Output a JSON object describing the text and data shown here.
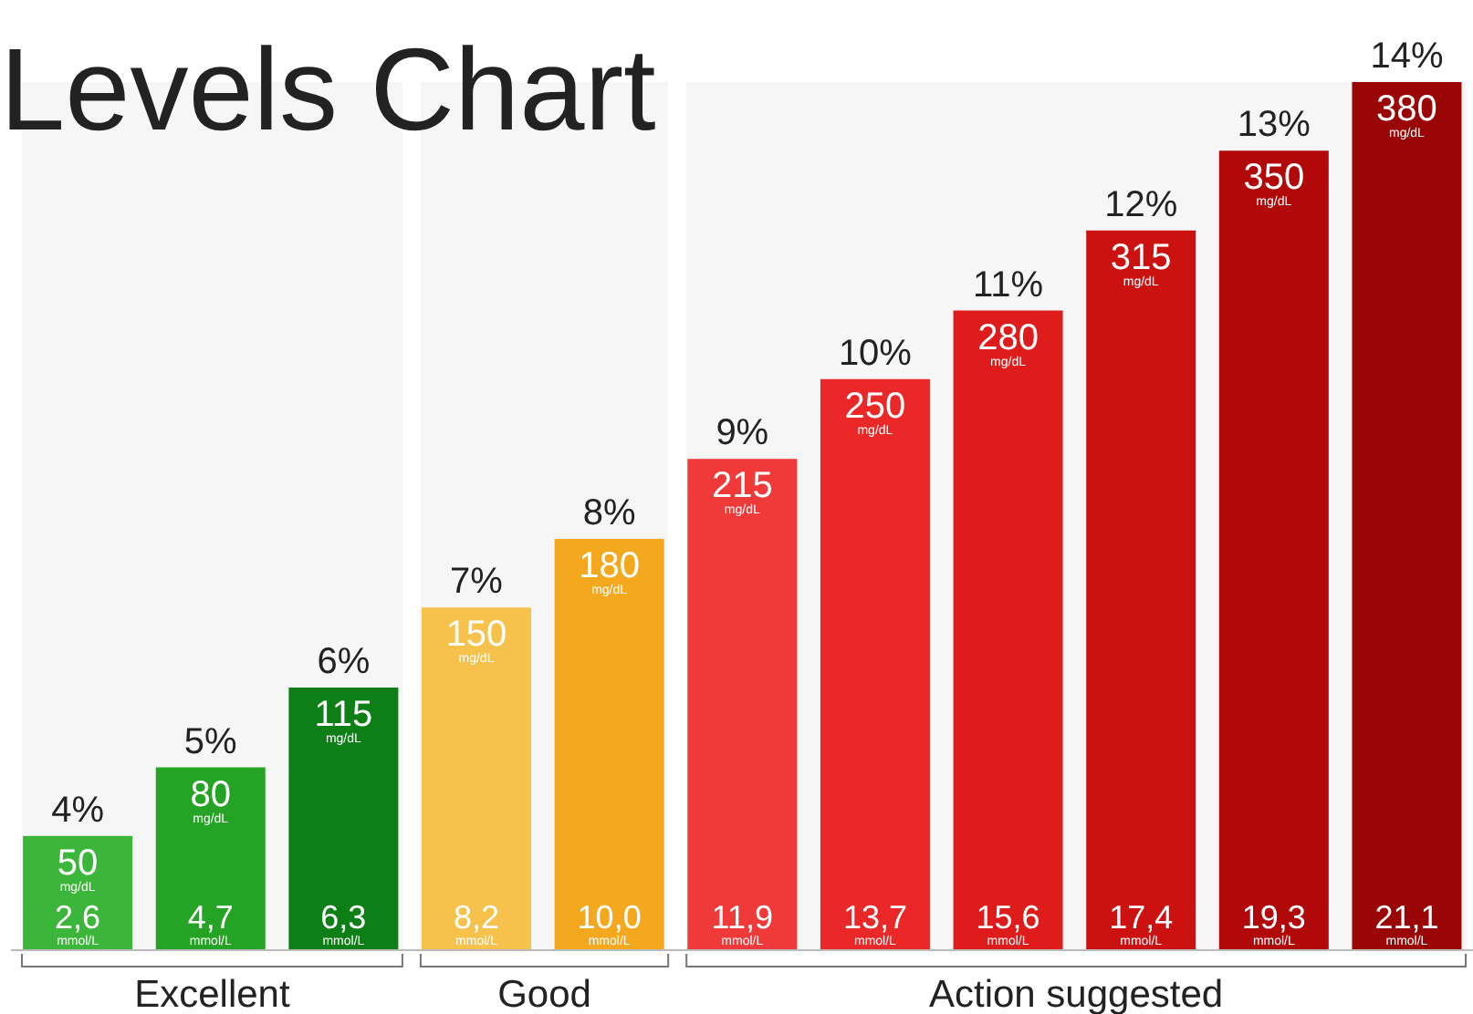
{
  "chart_data": {
    "type": "bar",
    "title": "Levels Chart",
    "categories": [
      "4%",
      "5%",
      "6%",
      "7%",
      "8%",
      "9%",
      "10%",
      "11%",
      "12%",
      "13%",
      "14%"
    ],
    "values": [
      50,
      80,
      115,
      150,
      180,
      215,
      250,
      280,
      315,
      350,
      380
    ],
    "colors": [
      "#3cb63a",
      "#24a324",
      "#0e7f16",
      "#f7c24c",
      "#f4a81e",
      "#f03a3a",
      "#eb2828",
      "#df1c1c",
      "#cc1111",
      "#b10909",
      "#9a0505"
    ],
    "data_labels": true,
    "ylim": [
      0,
      380
    ],
    "tick_labels": false,
    "annotations": [
      "2,6",
      "4,7",
      "6,3",
      "8,2",
      "10,0",
      "11,9",
      "13,7",
      "15,6",
      "17,4",
      "19,3",
      "21,1",
      "mg/dL",
      "mmol/L"
    ],
    "bands": [
      {
        "axis": "x",
        "from": "4%",
        "to": "6%",
        "label": "Excellent",
        "color": "#f6f6f6"
      },
      {
        "axis": "x",
        "from": "7%",
        "to": "8%",
        "label": "Good",
        "color": "#f6f6f6"
      },
      {
        "axis": "x",
        "from": "9%",
        "to": "14%",
        "label": "Action suggested",
        "color": "#f6f6f6"
      }
    ]
  }
}
